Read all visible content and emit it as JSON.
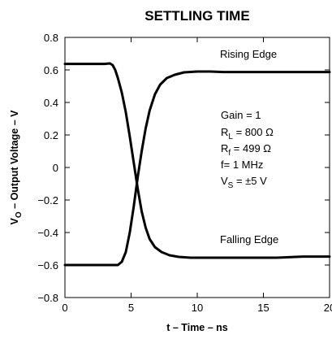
{
  "chart_data": {
    "type": "line",
    "title": "SETTLING TIME",
    "xlabel": "t – Time – ns",
    "ylabel": {
      "prefix": "V",
      "sub": "O",
      "rest": " – Output Voltage – V"
    },
    "xlim": [
      0,
      20
    ],
    "ylim": [
      -0.8,
      0.8
    ],
    "grid": false,
    "x_ticks": [
      0,
      5,
      10,
      15,
      20
    ],
    "x_tick_labels": [
      "0",
      "5",
      "10",
      "15",
      "20"
    ],
    "y_ticks": [
      -0.8,
      -0.6,
      -0.4,
      -0.2,
      0,
      0.2,
      0.4,
      0.6,
      0.8
    ],
    "y_tick_labels": [
      "−0.8",
      "−0.6",
      "−0.4",
      "−0.2",
      "0",
      "0.2",
      "0.4",
      "0.6",
      "0.8"
    ],
    "series": [
      {
        "name": "Rising Edge",
        "x": [
          0,
          3,
          4.0,
          4.3,
          4.6,
          4.9,
          5.2,
          5.5,
          5.8,
          6.1,
          6.4,
          6.8,
          7.2,
          7.7,
          8.3,
          9.0,
          10.0,
          11,
          12,
          14,
          16,
          18,
          20
        ],
        "y": [
          -0.6,
          -0.6,
          -0.6,
          -0.58,
          -0.52,
          -0.4,
          -0.24,
          -0.06,
          0.1,
          0.24,
          0.35,
          0.45,
          0.51,
          0.55,
          0.57,
          0.585,
          0.59,
          0.59,
          0.587,
          0.587,
          0.587,
          0.587,
          0.587
        ]
      },
      {
        "name": "Falling Edge",
        "x": [
          0,
          3,
          3.4,
          3.6,
          3.8,
          4.0,
          4.3,
          4.6,
          4.9,
          5.2,
          5.5,
          5.8,
          6.1,
          6.4,
          6.8,
          7.3,
          7.9,
          8.6,
          9.5,
          11,
          13,
          16,
          18,
          20
        ],
        "y": [
          0.637,
          0.637,
          0.64,
          0.63,
          0.6,
          0.55,
          0.46,
          0.34,
          0.19,
          0.03,
          -0.13,
          -0.27,
          -0.37,
          -0.44,
          -0.49,
          -0.52,
          -0.54,
          -0.55,
          -0.555,
          -0.555,
          -0.555,
          -0.555,
          -0.548,
          -0.548
        ]
      }
    ],
    "annotations": {
      "rising_label": "Rising Edge",
      "falling_label": "Falling Edge",
      "gain": "Gain = 1",
      "rl": {
        "main": "R",
        "sub": "L",
        "rest": " = 800 Ω"
      },
      "rf": {
        "main": "R",
        "sub": "f",
        "rest": " = 499 Ω"
      },
      "freq": "f= 1 MHz",
      "vs": {
        "main": "V",
        "sub": "S",
        "rest": " = ±5 V"
      }
    },
    "colors": {
      "line": "#000000",
      "axes": "#000000",
      "background": "#ffffff"
    }
  }
}
